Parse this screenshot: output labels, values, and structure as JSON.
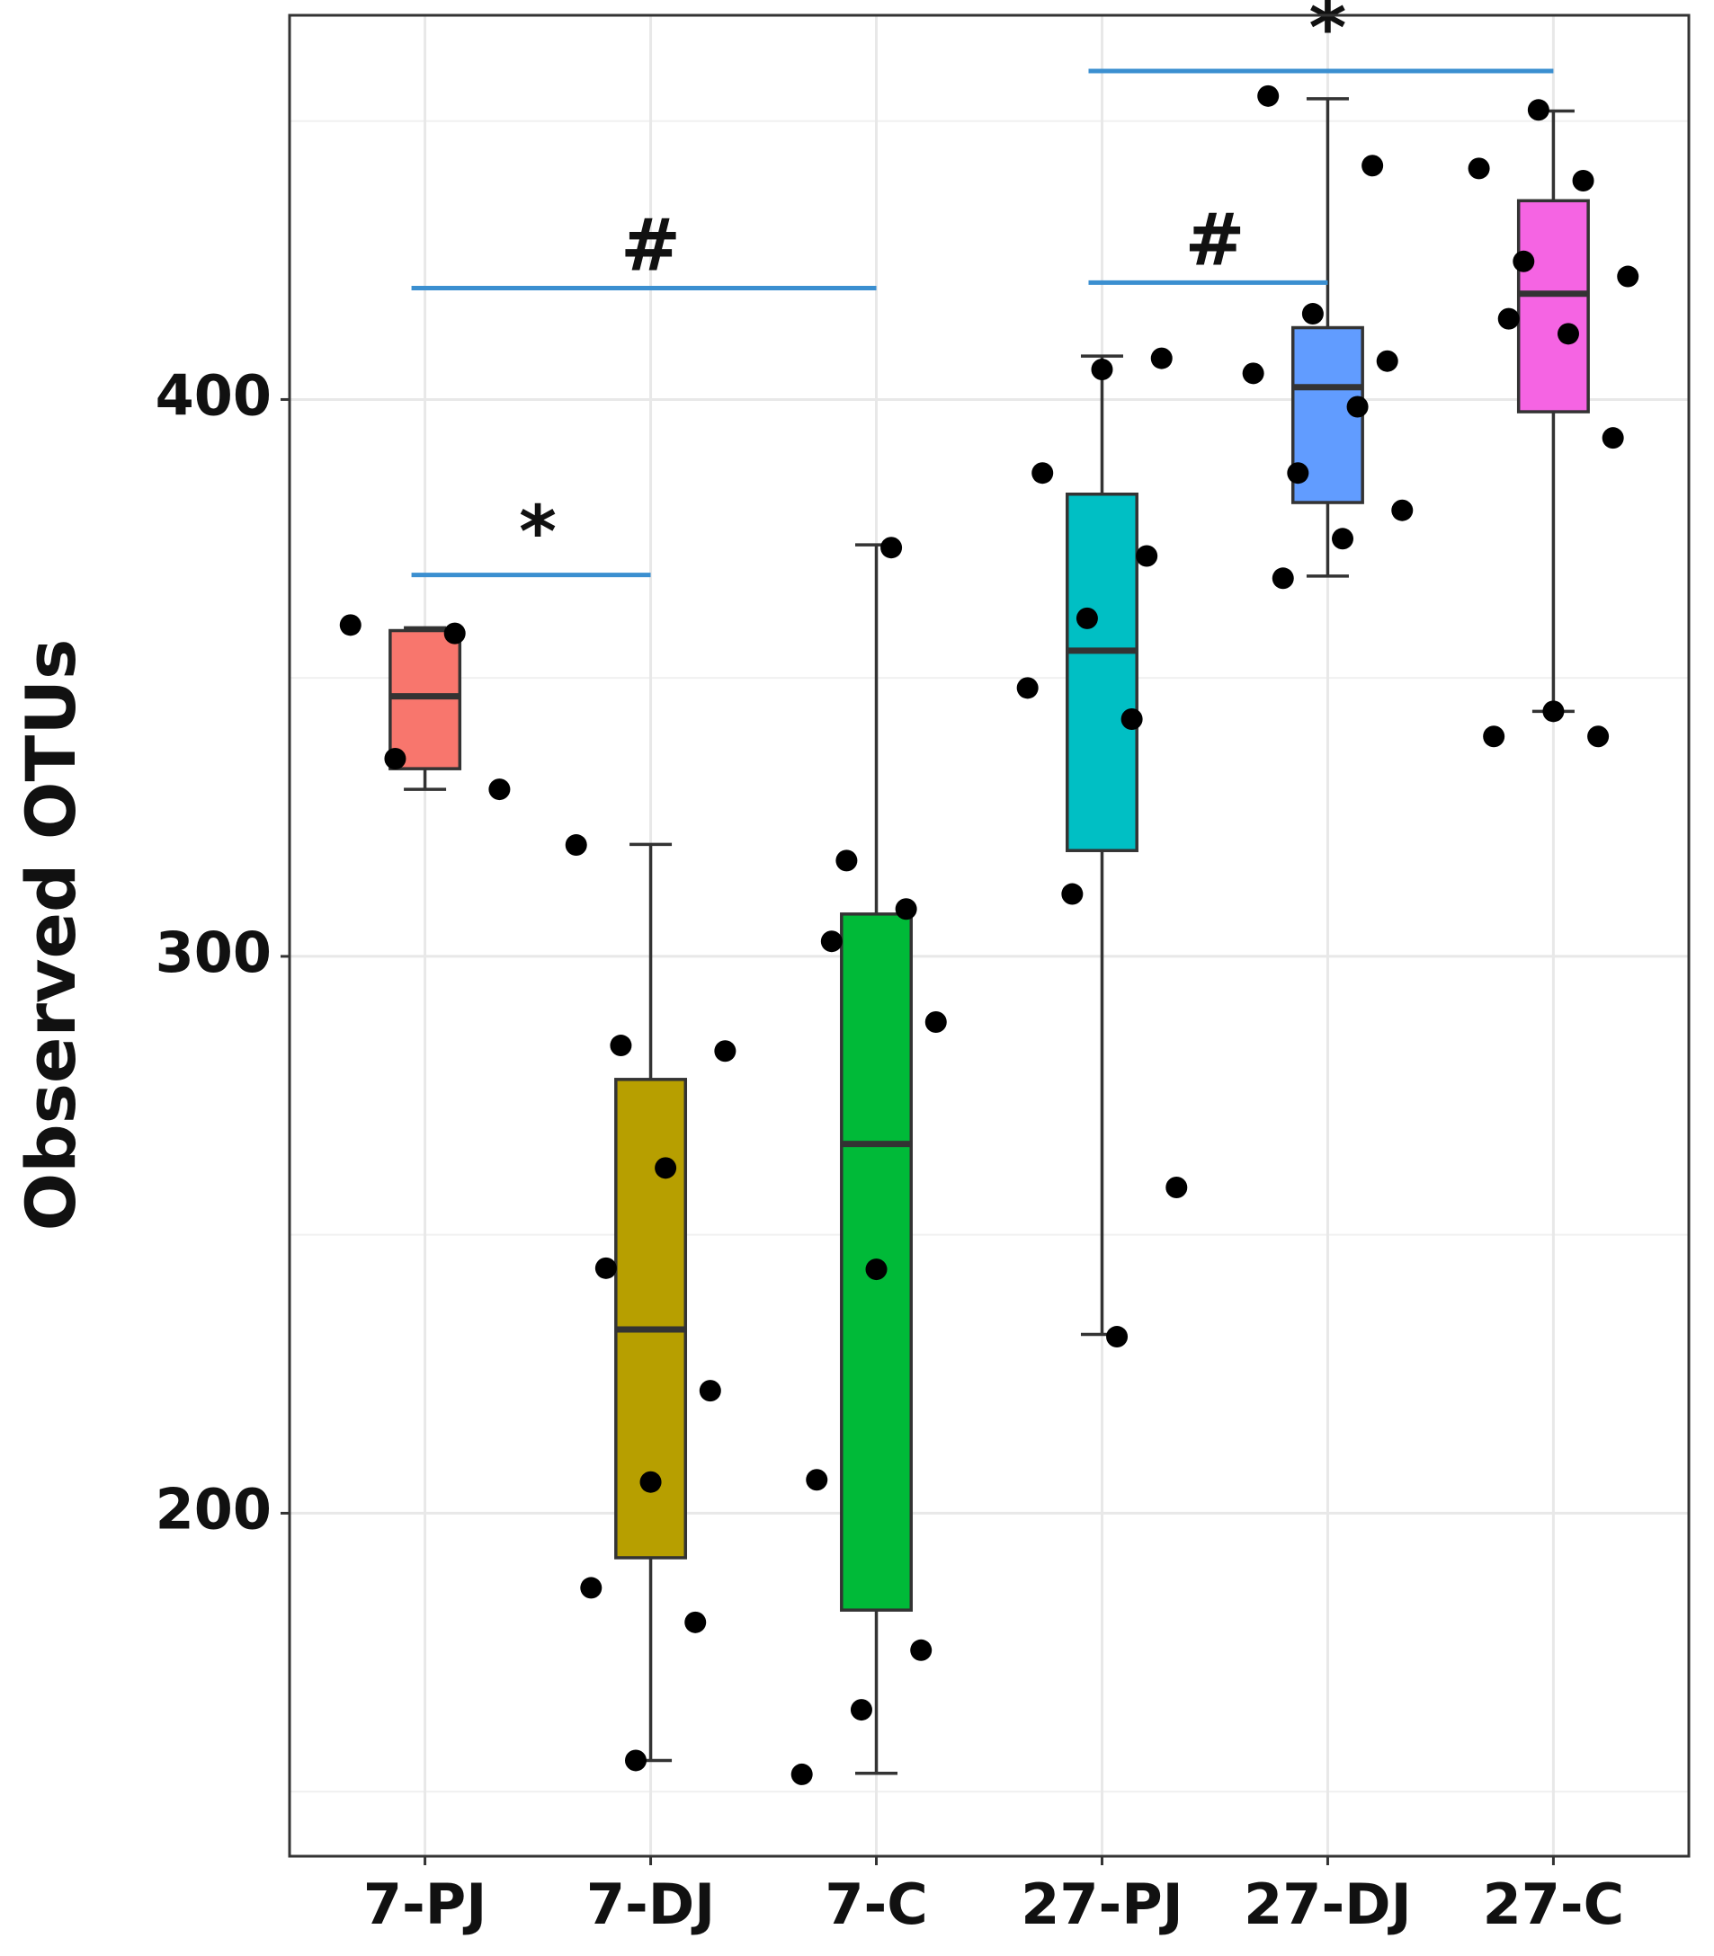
{
  "chart_data": {
    "type": "box",
    "y_label": "Observed OTUs",
    "categories": [
      "7-PJ",
      "7-DJ",
      "7-C",
      "27-PJ",
      "27-DJ",
      "27-C"
    ],
    "ylim": [
      138.4,
      469
    ],
    "yticks": [
      200,
      300,
      400
    ],
    "minor_gridlines": [
      150,
      250,
      350,
      450
    ],
    "grid": true,
    "boxes": [
      {
        "color": "#f8766d",
        "whisker_low": 330,
        "q1": 333.7,
        "median": 346.7,
        "q3": 358.5,
        "whisker_high": 359,
        "points": [
          359.5,
          358,
          335.5,
          330
        ]
      },
      {
        "color": "#b79f00",
        "whisker_low": 155.6,
        "q1": 192,
        "median": 233,
        "q3": 277.9,
        "whisker_high": 320.1,
        "points": [
          284,
          283,
          262,
          244,
          222,
          205.6,
          186.6,
          180.4,
          155.6,
          320
        ]
      },
      {
        "color": "#00ba38",
        "whisker_low": 153.3,
        "q1": 182.6,
        "median": 266.3,
        "q3": 307.6,
        "whisker_high": 373.9,
        "points": [
          373.4,
          302.7,
          288.2,
          243.8,
          206,
          175.4,
          164.7,
          153.1,
          308.5,
          317.2
        ]
      },
      {
        "color": "#00bfc4",
        "whisker_low": 232.1,
        "q1": 319,
        "median": 354.9,
        "q3": 383,
        "whisker_high": 407.8,
        "points": [
          407.4,
          405.4,
          386.8,
          371.9,
          360.7,
          348.2,
          342.6,
          311.2,
          258.5,
          231.7
        ]
      },
      {
        "color": "#619cff",
        "whisker_low": 368.3,
        "q1": 381.5,
        "median": 402.2,
        "q3": 412.9,
        "whisker_high": 454,
        "points": [
          454.5,
          442,
          415.4,
          404.7,
          398.7,
          386.8,
          380.1,
          375,
          367.9,
          406.9
        ]
      },
      {
        "color": "#f564e3",
        "whisker_low": 344,
        "q1": 397.8,
        "median": 419,
        "q3": 435.7,
        "whisker_high": 451.8,
        "points": [
          452,
          441.5,
          439.3,
          424.8,
          422.1,
          411.8,
          414.5,
          393.1,
          344,
          339.5,
          339.5
        ]
      }
    ],
    "annotations": [
      {
        "from": 0,
        "to": 1,
        "label": "*",
        "y": 368.5
      },
      {
        "from": 0,
        "to": 2,
        "label": "#",
        "y": 420
      },
      {
        "from": 3,
        "to": 4,
        "label": "#",
        "y": 421
      },
      {
        "from": 3,
        "to": 5,
        "label": "*",
        "y": 459
      }
    ],
    "annotation_color": "#3b8fd0"
  }
}
